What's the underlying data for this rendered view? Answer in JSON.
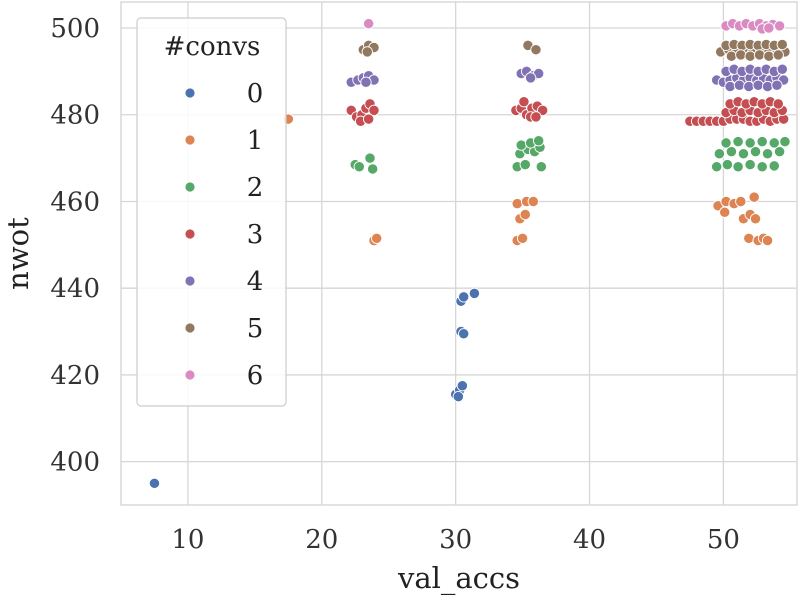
{
  "chart_data": {
    "type": "scatter",
    "title": "",
    "xlabel": "val_accs",
    "ylabel": "nwot",
    "xlim": [
      5,
      55.5
    ],
    "ylim": [
      390,
      506
    ],
    "xticks": [
      10,
      20,
      30,
      40,
      50
    ],
    "yticks": [
      400,
      420,
      440,
      460,
      480,
      500
    ],
    "grid": true,
    "legend": {
      "title": "#convs",
      "placement": "top-left"
    },
    "series": [
      {
        "name": "0",
        "color": "#4c72b0",
        "points": [
          [
            7.5,
            395
          ],
          [
            30.0,
            415.5
          ],
          [
            30.3,
            416.5
          ],
          [
            30.5,
            417.5
          ],
          [
            30.2,
            415
          ],
          [
            30.4,
            430
          ],
          [
            30.6,
            429.5
          ],
          [
            30.4,
            437
          ],
          [
            30.6,
            438
          ],
          [
            31.4,
            438.8
          ]
        ]
      },
      {
        "name": "1",
        "color": "#dd8452",
        "points": [
          [
            17.5,
            479
          ],
          [
            23.9,
            451
          ],
          [
            24.1,
            451.5
          ],
          [
            34.6,
            451
          ],
          [
            35.0,
            451.5
          ],
          [
            34.8,
            456
          ],
          [
            35.2,
            457
          ],
          [
            34.6,
            459.5
          ],
          [
            35.3,
            460
          ],
          [
            35.8,
            460
          ],
          [
            49.6,
            459
          ],
          [
            50.2,
            460
          ],
          [
            50.8,
            459.5
          ],
          [
            51.3,
            460
          ],
          [
            50.1,
            457.5
          ],
          [
            51.5,
            456
          ],
          [
            52.0,
            457
          ],
          [
            52.4,
            456
          ],
          [
            51.9,
            451.5
          ],
          [
            52.6,
            451
          ],
          [
            53.0,
            451.5
          ],
          [
            53.3,
            451
          ],
          [
            52.3,
            461
          ]
        ]
      },
      {
        "name": "2",
        "color": "#55a868",
        "points": [
          [
            22.5,
            468.5
          ],
          [
            22.8,
            468
          ],
          [
            23.6,
            470
          ],
          [
            23.8,
            467.5
          ],
          [
            34.6,
            468
          ],
          [
            35.2,
            468.5
          ],
          [
            36.4,
            468
          ],
          [
            34.8,
            471
          ],
          [
            35.4,
            472
          ],
          [
            35.9,
            471.5
          ],
          [
            36.3,
            472.5
          ],
          [
            34.9,
            473
          ],
          [
            35.6,
            473.5
          ],
          [
            36.2,
            474
          ],
          [
            49.5,
            468
          ],
          [
            50.3,
            468.5
          ],
          [
            51.1,
            468
          ],
          [
            52.0,
            468.5
          ],
          [
            52.9,
            468
          ],
          [
            53.8,
            468.2
          ],
          [
            49.7,
            471
          ],
          [
            50.6,
            471.5
          ],
          [
            51.5,
            471
          ],
          [
            52.4,
            471.5
          ],
          [
            53.3,
            471
          ],
          [
            54.2,
            471.5
          ],
          [
            50.2,
            473.5
          ],
          [
            51.1,
            473.8
          ],
          [
            52.0,
            473.5
          ],
          [
            52.9,
            473.8
          ],
          [
            53.8,
            473.5
          ],
          [
            54.6,
            473.8
          ]
        ]
      },
      {
        "name": "3",
        "color": "#c44e52",
        "points": [
          [
            22.2,
            481
          ],
          [
            22.6,
            479.5
          ],
          [
            23.0,
            480
          ],
          [
            23.3,
            481.5
          ],
          [
            23.6,
            482.5
          ],
          [
            23.9,
            481
          ],
          [
            22.9,
            478.5
          ],
          [
            23.5,
            479
          ],
          [
            34.5,
            481
          ],
          [
            34.9,
            481.5
          ],
          [
            35.3,
            480
          ],
          [
            35.7,
            481.5
          ],
          [
            36.1,
            482
          ],
          [
            36.5,
            481
          ],
          [
            35.1,
            483
          ],
          [
            35.6,
            479.5
          ],
          [
            36.0,
            479.5
          ],
          [
            47.5,
            478.5
          ],
          [
            48.0,
            478.5
          ],
          [
            48.5,
            478.5
          ],
          [
            49.0,
            478.5
          ],
          [
            49.5,
            478.5
          ],
          [
            50.0,
            478.5
          ],
          [
            50.5,
            479
          ],
          [
            51.0,
            479
          ],
          [
            51.5,
            479
          ],
          [
            52.0,
            478.5
          ],
          [
            52.5,
            478.5
          ],
          [
            53.0,
            479
          ],
          [
            53.5,
            478.5
          ],
          [
            54.0,
            479
          ],
          [
            54.5,
            479
          ],
          [
            50.2,
            480.5
          ],
          [
            50.8,
            481
          ],
          [
            51.4,
            480.5
          ],
          [
            52.0,
            481
          ],
          [
            52.6,
            480.5
          ],
          [
            53.2,
            481
          ],
          [
            53.8,
            480.5
          ],
          [
            54.4,
            481
          ],
          [
            50.5,
            482.5
          ],
          [
            51.1,
            483
          ],
          [
            51.7,
            482.5
          ],
          [
            52.3,
            483
          ],
          [
            52.9,
            482.5
          ],
          [
            53.5,
            483
          ],
          [
            54.1,
            482.5
          ]
        ]
      },
      {
        "name": "4",
        "color": "#8172b3",
        "points": [
          [
            22.2,
            487.5
          ],
          [
            22.7,
            488
          ],
          [
            23.1,
            488.5
          ],
          [
            23.5,
            489
          ],
          [
            23.9,
            488
          ],
          [
            23.3,
            487.5
          ],
          [
            34.9,
            489.5
          ],
          [
            35.3,
            490
          ],
          [
            35.8,
            489
          ],
          [
            36.2,
            489.5
          ],
          [
            35.6,
            488.5
          ],
          [
            49.5,
            488
          ],
          [
            50.0,
            487.5
          ],
          [
            50.5,
            488
          ],
          [
            51.0,
            488.5
          ],
          [
            51.5,
            488
          ],
          [
            52.0,
            488.5
          ],
          [
            52.5,
            488
          ],
          [
            53.0,
            488.5
          ],
          [
            53.5,
            488
          ],
          [
            54.0,
            488.5
          ],
          [
            54.5,
            488
          ],
          [
            50.2,
            490
          ],
          [
            50.8,
            490.5
          ],
          [
            51.4,
            490
          ],
          [
            52.0,
            490.5
          ],
          [
            52.6,
            490
          ],
          [
            53.2,
            490.5
          ],
          [
            53.8,
            490
          ],
          [
            54.4,
            490.5
          ],
          [
            50.5,
            486.5
          ],
          [
            51.2,
            486.8
          ],
          [
            51.9,
            486.5
          ],
          [
            52.6,
            486.8
          ],
          [
            53.3,
            486.5
          ],
          [
            54.0,
            486.8
          ]
        ]
      },
      {
        "name": "5",
        "color": "#937860",
        "points": [
          [
            23.1,
            495
          ],
          [
            23.5,
            496
          ],
          [
            23.9,
            495.5
          ],
          [
            23.4,
            494.5
          ],
          [
            35.4,
            496
          ],
          [
            36.0,
            495
          ],
          [
            49.8,
            494.5
          ],
          [
            50.4,
            495
          ],
          [
            51.0,
            494.5
          ],
          [
            51.6,
            495
          ],
          [
            52.2,
            494.5
          ],
          [
            52.8,
            495
          ],
          [
            53.4,
            494.5
          ],
          [
            54.0,
            495
          ],
          [
            54.6,
            494.5
          ],
          [
            50.2,
            496
          ],
          [
            50.8,
            496.2
          ],
          [
            51.4,
            496
          ],
          [
            52.0,
            496.2
          ],
          [
            52.6,
            496
          ],
          [
            53.2,
            496.2
          ],
          [
            53.8,
            496
          ],
          [
            54.4,
            496.2
          ],
          [
            50.6,
            493.5
          ],
          [
            51.3,
            493.8
          ],
          [
            52.0,
            493.5
          ],
          [
            52.7,
            493.8
          ],
          [
            53.4,
            493.5
          ],
          [
            54.1,
            493.8
          ]
        ]
      },
      {
        "name": "6",
        "color": "#da8bc3",
        "points": [
          [
            23.5,
            501
          ],
          [
            50.2,
            500.5
          ],
          [
            50.7,
            501
          ],
          [
            51.2,
            500.5
          ],
          [
            51.7,
            501
          ],
          [
            52.2,
            500.5
          ],
          [
            52.7,
            501
          ],
          [
            53.2,
            500.5
          ],
          [
            53.7,
            500.8
          ],
          [
            54.2,
            500.5
          ],
          [
            52.9,
            499.8
          ],
          [
            53.4,
            500
          ]
        ]
      }
    ]
  }
}
